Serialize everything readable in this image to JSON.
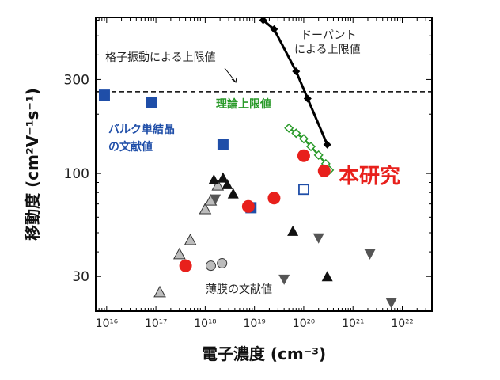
{
  "chart_data": {
    "type": "scatter",
    "title": "",
    "xlabel": "電子濃度 (cm⁻³)",
    "ylabel": "移動度 (cm²V⁻¹s⁻¹)",
    "x_scale": "log",
    "y_scale": "log",
    "xlim": [
      6000000000000000.0,
      4e+22
    ],
    "ylim": [
      20,
      620
    ],
    "x_ticks": [
      {
        "value": 1e+16,
        "label": "10¹⁶"
      },
      {
        "value": 1e+17,
        "label": "10¹⁷"
      },
      {
        "value": 1e+18,
        "label": "10¹⁸"
      },
      {
        "value": 1e+19,
        "label": "10¹⁹"
      },
      {
        "value": 1e+20,
        "label": "10²⁰"
      },
      {
        "value": 1e+21,
        "label": "10²¹"
      },
      {
        "value": 1e+22,
        "label": "10²²"
      }
    ],
    "y_ticks": [
      {
        "value": 30,
        "label": "30"
      },
      {
        "value": 100,
        "label": "100"
      },
      {
        "value": 300,
        "label": "300"
      }
    ],
    "grid": false,
    "lattice_limit": {
      "value": 260,
      "label": "格子振動による上限値"
    },
    "series": [
      {
        "name": "ドーパントによる上限値",
        "label_lines": [
          "ドーパント",
          "による上限値"
        ],
        "style": "line-diamond",
        "color": "#000000",
        "points": [
          [
            1.5e+19,
            600
          ],
          [
            2.5e+19,
            540
          ],
          [
            7e+19,
            330
          ],
          [
            1.2e+20,
            240
          ],
          [
            3e+20,
            140
          ]
        ]
      },
      {
        "name": "理論上限値",
        "style": "line-open-diamond",
        "color": "#2a9a2a",
        "points": [
          [
            5e+19,
            170
          ],
          [
            7e+19,
            160
          ],
          [
            1e+20,
            150
          ],
          [
            1.4e+20,
            137
          ],
          [
            2e+20,
            124
          ],
          [
            2.8e+20,
            112
          ],
          [
            3.3e+20,
            104
          ]
        ]
      },
      {
        "name": "バルク単結晶の文献値",
        "label_lines": [
          "バルク単結晶",
          "の文献値"
        ],
        "style": "filled-square",
        "color": "#1f4ea8",
        "points": [
          [
            9000000000000000.0,
            250
          ],
          [
            8e+16,
            230
          ],
          [
            2.3e+18,
            140
          ],
          [
            8.5e+18,
            67
          ]
        ]
      },
      {
        "name": "本研究",
        "style": "filled-circle",
        "color": "#e8201c",
        "points": [
          [
            4e+17,
            34
          ],
          [
            7.5e+18,
            68
          ],
          [
            2.5e+19,
            75
          ],
          [
            1e+20,
            123
          ],
          [
            2.6e+20,
            103
          ]
        ]
      },
      {
        "name": "open-square",
        "style": "open-square",
        "color": "#1f4ea8",
        "points": [
          [
            1e+20,
            83
          ]
        ]
      },
      {
        "name": "薄膜の文献値",
        "style": "gray-triangle",
        "color": "#bcbcbc",
        "points": [
          [
            1.2e+17,
            25
          ],
          [
            3e+17,
            39
          ],
          [
            5e+17,
            46
          ],
          [
            1e+18,
            66
          ],
          [
            1.3e+18,
            73
          ],
          [
            1.8e+18,
            87
          ]
        ]
      },
      {
        "name": "gray-circle",
        "style": "gray-circle",
        "color": "#bcbcbc",
        "points": [
          [
            1.3e+18,
            34
          ],
          [
            2.2e+18,
            35
          ]
        ]
      },
      {
        "name": "black-triangle",
        "style": "black-triangle",
        "color": "#111111",
        "points": [
          [
            1.5e+18,
            93
          ],
          [
            2.3e+18,
            95
          ],
          [
            2.8e+18,
            88
          ],
          [
            3.7e+18,
            79
          ],
          [
            6e+19,
            51
          ],
          [
            3e+20,
            30
          ]
        ]
      },
      {
        "name": "inverted-triangle",
        "style": "inverted-triangle",
        "color": "#555555",
        "points": [
          [
            1.6e+18,
            74
          ],
          [
            2e+20,
            47
          ],
          [
            4e+19,
            29
          ],
          [
            2.2e+21,
            39
          ],
          [
            6e+21,
            22
          ]
        ]
      }
    ],
    "labels": {
      "this_work": "本研究",
      "theory": "理論上限値",
      "bulk": [
        "バルク単結晶",
        "の文献値"
      ],
      "dopant": [
        "ドーパント",
        "による上限値"
      ],
      "film": "薄膜の文献値",
      "lattice": "格子振動による上限値"
    }
  }
}
